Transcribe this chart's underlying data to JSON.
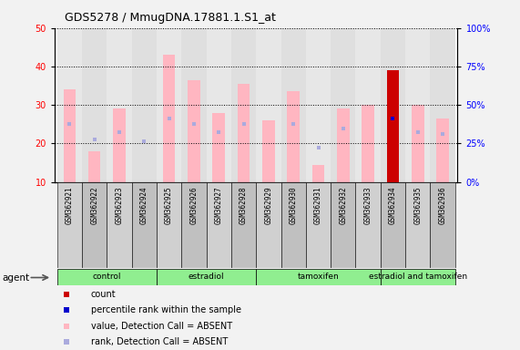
{
  "title": "GDS5278 / MmugDNA.17881.1.S1_at",
  "samples": [
    "GSM362921",
    "GSM362922",
    "GSM362923",
    "GSM362924",
    "GSM362925",
    "GSM362926",
    "GSM362927",
    "GSM362928",
    "GSM362929",
    "GSM362930",
    "GSM362931",
    "GSM362932",
    "GSM362933",
    "GSM362934",
    "GSM362935",
    "GSM362936"
  ],
  "pink_values": [
    34.0,
    18.0,
    29.0,
    null,
    43.0,
    36.5,
    27.8,
    35.5,
    26.0,
    33.5,
    14.5,
    29.0,
    30.0,
    39.0,
    30.0,
    26.5
  ],
  "blue_rank_values": [
    25.0,
    21.0,
    23.0,
    20.5,
    26.5,
    25.0,
    23.0,
    25.0,
    null,
    25.0,
    19.0,
    24.0,
    null,
    26.5,
    23.0,
    22.5
  ],
  "red_count_values": [
    null,
    null,
    null,
    null,
    null,
    null,
    null,
    null,
    null,
    null,
    null,
    null,
    null,
    39.0,
    null,
    null
  ],
  "blue_dot_values": [
    null,
    null,
    null,
    null,
    null,
    null,
    null,
    null,
    null,
    null,
    null,
    null,
    null,
    26.5,
    null,
    null
  ],
  "ylim_left": [
    10,
    50
  ],
  "ylim_right": [
    0,
    100
  ],
  "yticks_left": [
    10,
    20,
    30,
    40,
    50
  ],
  "yticks_right": [
    0,
    25,
    50,
    75,
    100
  ],
  "groups": [
    {
      "label": "control",
      "start": 0,
      "end": 3
    },
    {
      "label": "estradiol",
      "start": 4,
      "end": 7
    },
    {
      "label": "tamoxifen",
      "start": 8,
      "end": 12
    },
    {
      "label": "estradiol and tamoxifen",
      "start": 13,
      "end": 15
    }
  ],
  "pink_color": "#FFB6C1",
  "blue_color": "#AAAADD",
  "red_color": "#CC0000",
  "blue_dot_color": "#0000CC",
  "bar_width": 0.5,
  "col_bg_even": "#D0D0D0",
  "col_bg_odd": "#C0C0C0",
  "plot_bg": "#FFFFFF",
  "fig_bg": "#F2F2F2",
  "green_group": "#90EE90"
}
